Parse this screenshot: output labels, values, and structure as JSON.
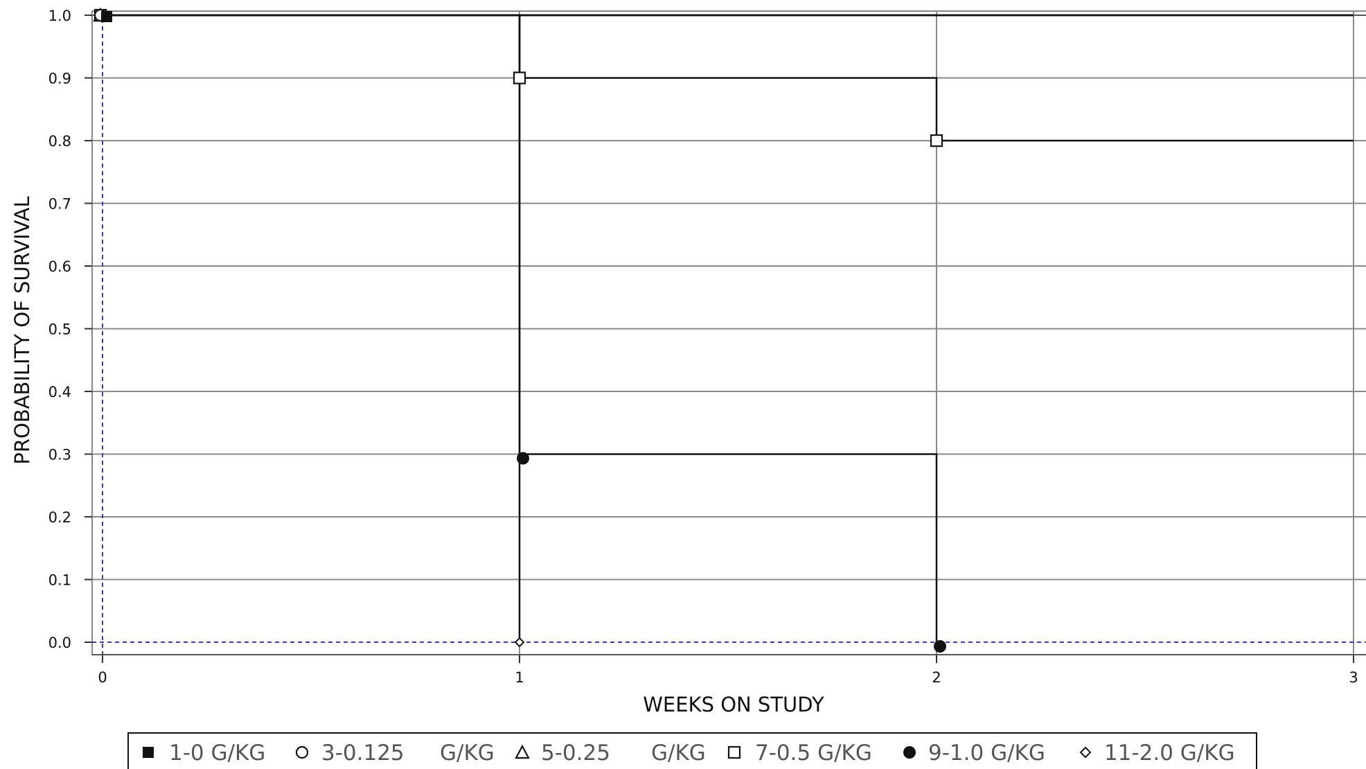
{
  "chart_data": {
    "type": "line",
    "step": true,
    "xlabel": "WEEKS ON STUDY",
    "ylabel": "PROBABILITY OF SURVIVAL",
    "xlim": [
      0,
      3
    ],
    "ylim": [
      0,
      1
    ],
    "x_ticks": [
      "0",
      "1",
      "2",
      "3"
    ],
    "y_ticks": [
      "0.0",
      "0.1",
      "0.2",
      "0.3",
      "0.4",
      "0.5",
      "0.6",
      "0.7",
      "0.8",
      "0.9",
      "1.0"
    ],
    "grid": true,
    "legend_position": "bottom",
    "series": [
      {
        "name": "1-0 G/KG",
        "marker": "filled-square",
        "x": [
          0,
          3
        ],
        "y": [
          1.0,
          1.0
        ],
        "marked_points": [
          [
            0,
            1.0
          ]
        ]
      },
      {
        "name": "3-0.125",
        "unit": "G/KG",
        "marker": "open-circle",
        "x": [
          0,
          3
        ],
        "y": [
          1.0,
          1.0
        ],
        "marked_points": [
          [
            0,
            1.0
          ]
        ]
      },
      {
        "name": "5-0.25",
        "unit": "G/KG",
        "marker": "open-triangle",
        "x": [
          0,
          3
        ],
        "y": [
          1.0,
          1.0
        ],
        "marked_points": [
          [
            0,
            1.0
          ]
        ]
      },
      {
        "name": "7-0.5 G/KG",
        "marker": "open-square",
        "x": [
          0,
          1,
          2,
          3
        ],
        "y": [
          1.0,
          0.9,
          0.8,
          0.8
        ],
        "marked_points": [
          [
            0,
            1.0
          ],
          [
            1,
            0.9
          ],
          [
            2,
            0.8
          ]
        ]
      },
      {
        "name": "9-1.0 G/KG",
        "marker": "filled-circle",
        "x": [
          0,
          1,
          2
        ],
        "y": [
          1.0,
          0.3,
          0.0
        ],
        "marked_points": [
          [
            0,
            1.0
          ],
          [
            1,
            0.3
          ],
          [
            2,
            0.0
          ]
        ]
      },
      {
        "name": "11-2.0 G/KG",
        "marker": "open-diamond",
        "x": [
          0,
          1
        ],
        "y": [
          1.0,
          0.0
        ],
        "marked_points": [
          [
            0,
            1.0
          ],
          [
            1,
            0.0
          ]
        ]
      }
    ]
  }
}
